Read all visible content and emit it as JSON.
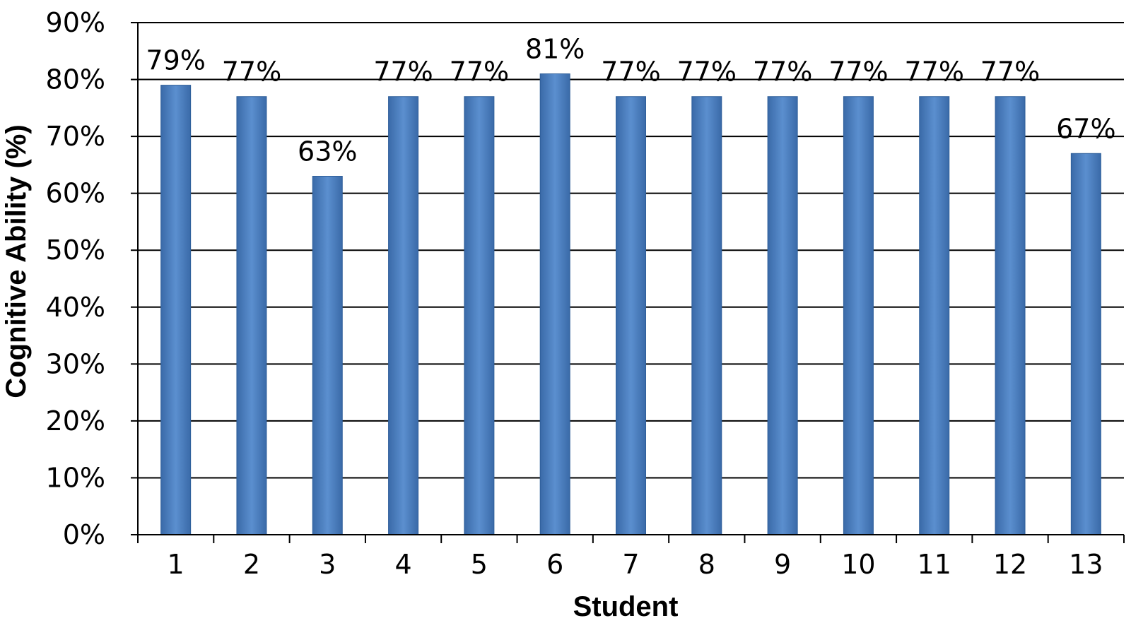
{
  "chart_data": {
    "type": "bar",
    "title": "",
    "xlabel": "Student",
    "ylabel": "Cognitive Ability (%)",
    "categories": [
      "1",
      "2",
      "3",
      "4",
      "5",
      "6",
      "7",
      "8",
      "9",
      "10",
      "11",
      "12",
      "13"
    ],
    "values": [
      79,
      77,
      63,
      77,
      77,
      81,
      77,
      77,
      77,
      77,
      77,
      77,
      67
    ],
    "data_labels": [
      "79%",
      "77%",
      "63%",
      "77%",
      "77%",
      "81%",
      "77%",
      "77%",
      "77%",
      "77%",
      "77%",
      "77%",
      "67%"
    ],
    "yticks": [
      "0%",
      "10%",
      "20%",
      "30%",
      "40%",
      "50%",
      "60%",
      "70%",
      "80%",
      "90%"
    ],
    "ylim": [
      0,
      90
    ],
    "grid": true,
    "legend": "none",
    "bar_color": "#4a7ebb",
    "bar_edge_color": "#2f5f9a"
  }
}
